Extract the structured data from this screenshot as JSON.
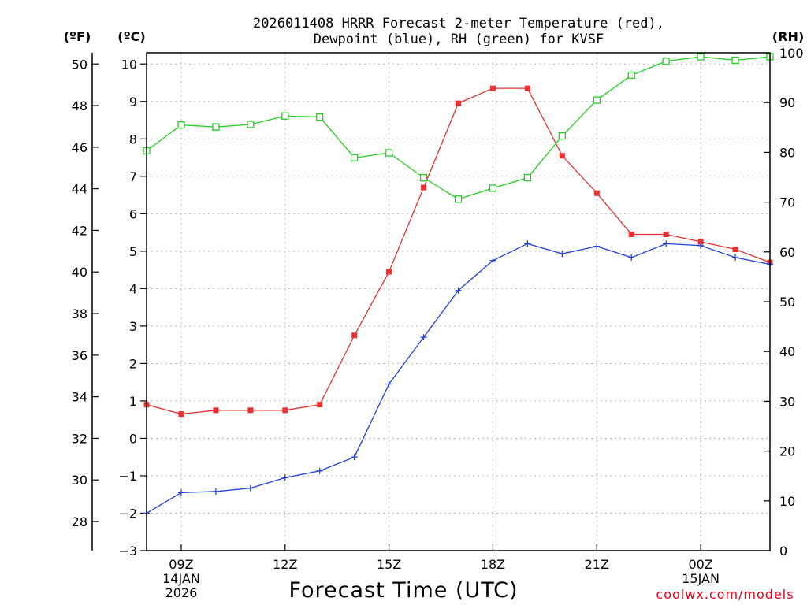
{
  "chart_data": {
    "type": "line",
    "title_line1": "2026011408 HRRR Forecast 2-meter Temperature (red),",
    "title_line2": "Dewpoint (blue), RH (green) for KVSF",
    "xlabel": "Forecast Time (UTC)",
    "credit": "coolwx.com/models",
    "units": {
      "fahrenheit": "(ºF)",
      "celsius": "(ºC)",
      "rh": "(RH)"
    },
    "x_hours": [
      8,
      9,
      10,
      11,
      12,
      13,
      14,
      15,
      16,
      17,
      18,
      19,
      20,
      21,
      22,
      23,
      24,
      25,
      26
    ],
    "xlim": [
      8,
      26
    ],
    "x_ticks": [
      {
        "hour": 9,
        "lines": [
          "09Z",
          "14JAN",
          "2026"
        ]
      },
      {
        "hour": 12,
        "lines": [
          "12Z"
        ]
      },
      {
        "hour": 15,
        "lines": [
          "15Z"
        ]
      },
      {
        "hour": 18,
        "lines": [
          "18Z"
        ]
      },
      {
        "hour": 21,
        "lines": [
          "21Z"
        ]
      },
      {
        "hour": 24,
        "lines": [
          "00Z",
          "15JAN"
        ]
      }
    ],
    "celsius_axis": {
      "range": [
        -3,
        10.3
      ],
      "ticks": [
        "−3",
        "−2",
        "−1",
        "0",
        "1",
        "2",
        "3",
        "4",
        "5",
        "6",
        "7",
        "8",
        "9",
        "10"
      ]
    },
    "fahrenheit_axis": {
      "ticks": [
        "28",
        "30",
        "32",
        "34",
        "36",
        "38",
        "40",
        "42",
        "44",
        "46",
        "48",
        "50"
      ]
    },
    "rh_axis": {
      "range": [
        0,
        100
      ],
      "ticks": [
        "0",
        "10",
        "20",
        "30",
        "40",
        "50",
        "60",
        "70",
        "80",
        "90",
        "100"
      ]
    },
    "series": [
      {
        "name": "Temperature (red)",
        "axis": "celsius",
        "color": "#e83030",
        "marker": "filled-square",
        "values": [
          0.9,
          0.65,
          0.75,
          0.75,
          0.75,
          0.9,
          2.75,
          4.45,
          6.7,
          8.95,
          9.35,
          9.35,
          7.55,
          6.55,
          5.45,
          5.45,
          5.25,
          5.05,
          4.7
        ]
      },
      {
        "name": "Dewpoint (blue)",
        "axis": "celsius",
        "color": "#2040e0",
        "marker": "plus",
        "values": [
          -2.0,
          -1.45,
          -1.42,
          -1.33,
          -1.05,
          -0.87,
          -0.5,
          1.45,
          2.7,
          3.95,
          4.75,
          5.2,
          4.93,
          5.13,
          4.83,
          5.2,
          5.15,
          4.83,
          4.65
        ]
      },
      {
        "name": "RH (green)",
        "axis": "rh",
        "color": "#20d020",
        "marker": "open-square",
        "values": [
          80.3,
          85.5,
          85.1,
          85.6,
          87.3,
          87.1,
          78.9,
          79.9,
          74.9,
          70.6,
          72.8,
          74.9,
          83.3,
          90.5,
          95.5,
          98.3,
          99.2,
          98.5,
          99.2
        ]
      }
    ],
    "grid": true
  }
}
